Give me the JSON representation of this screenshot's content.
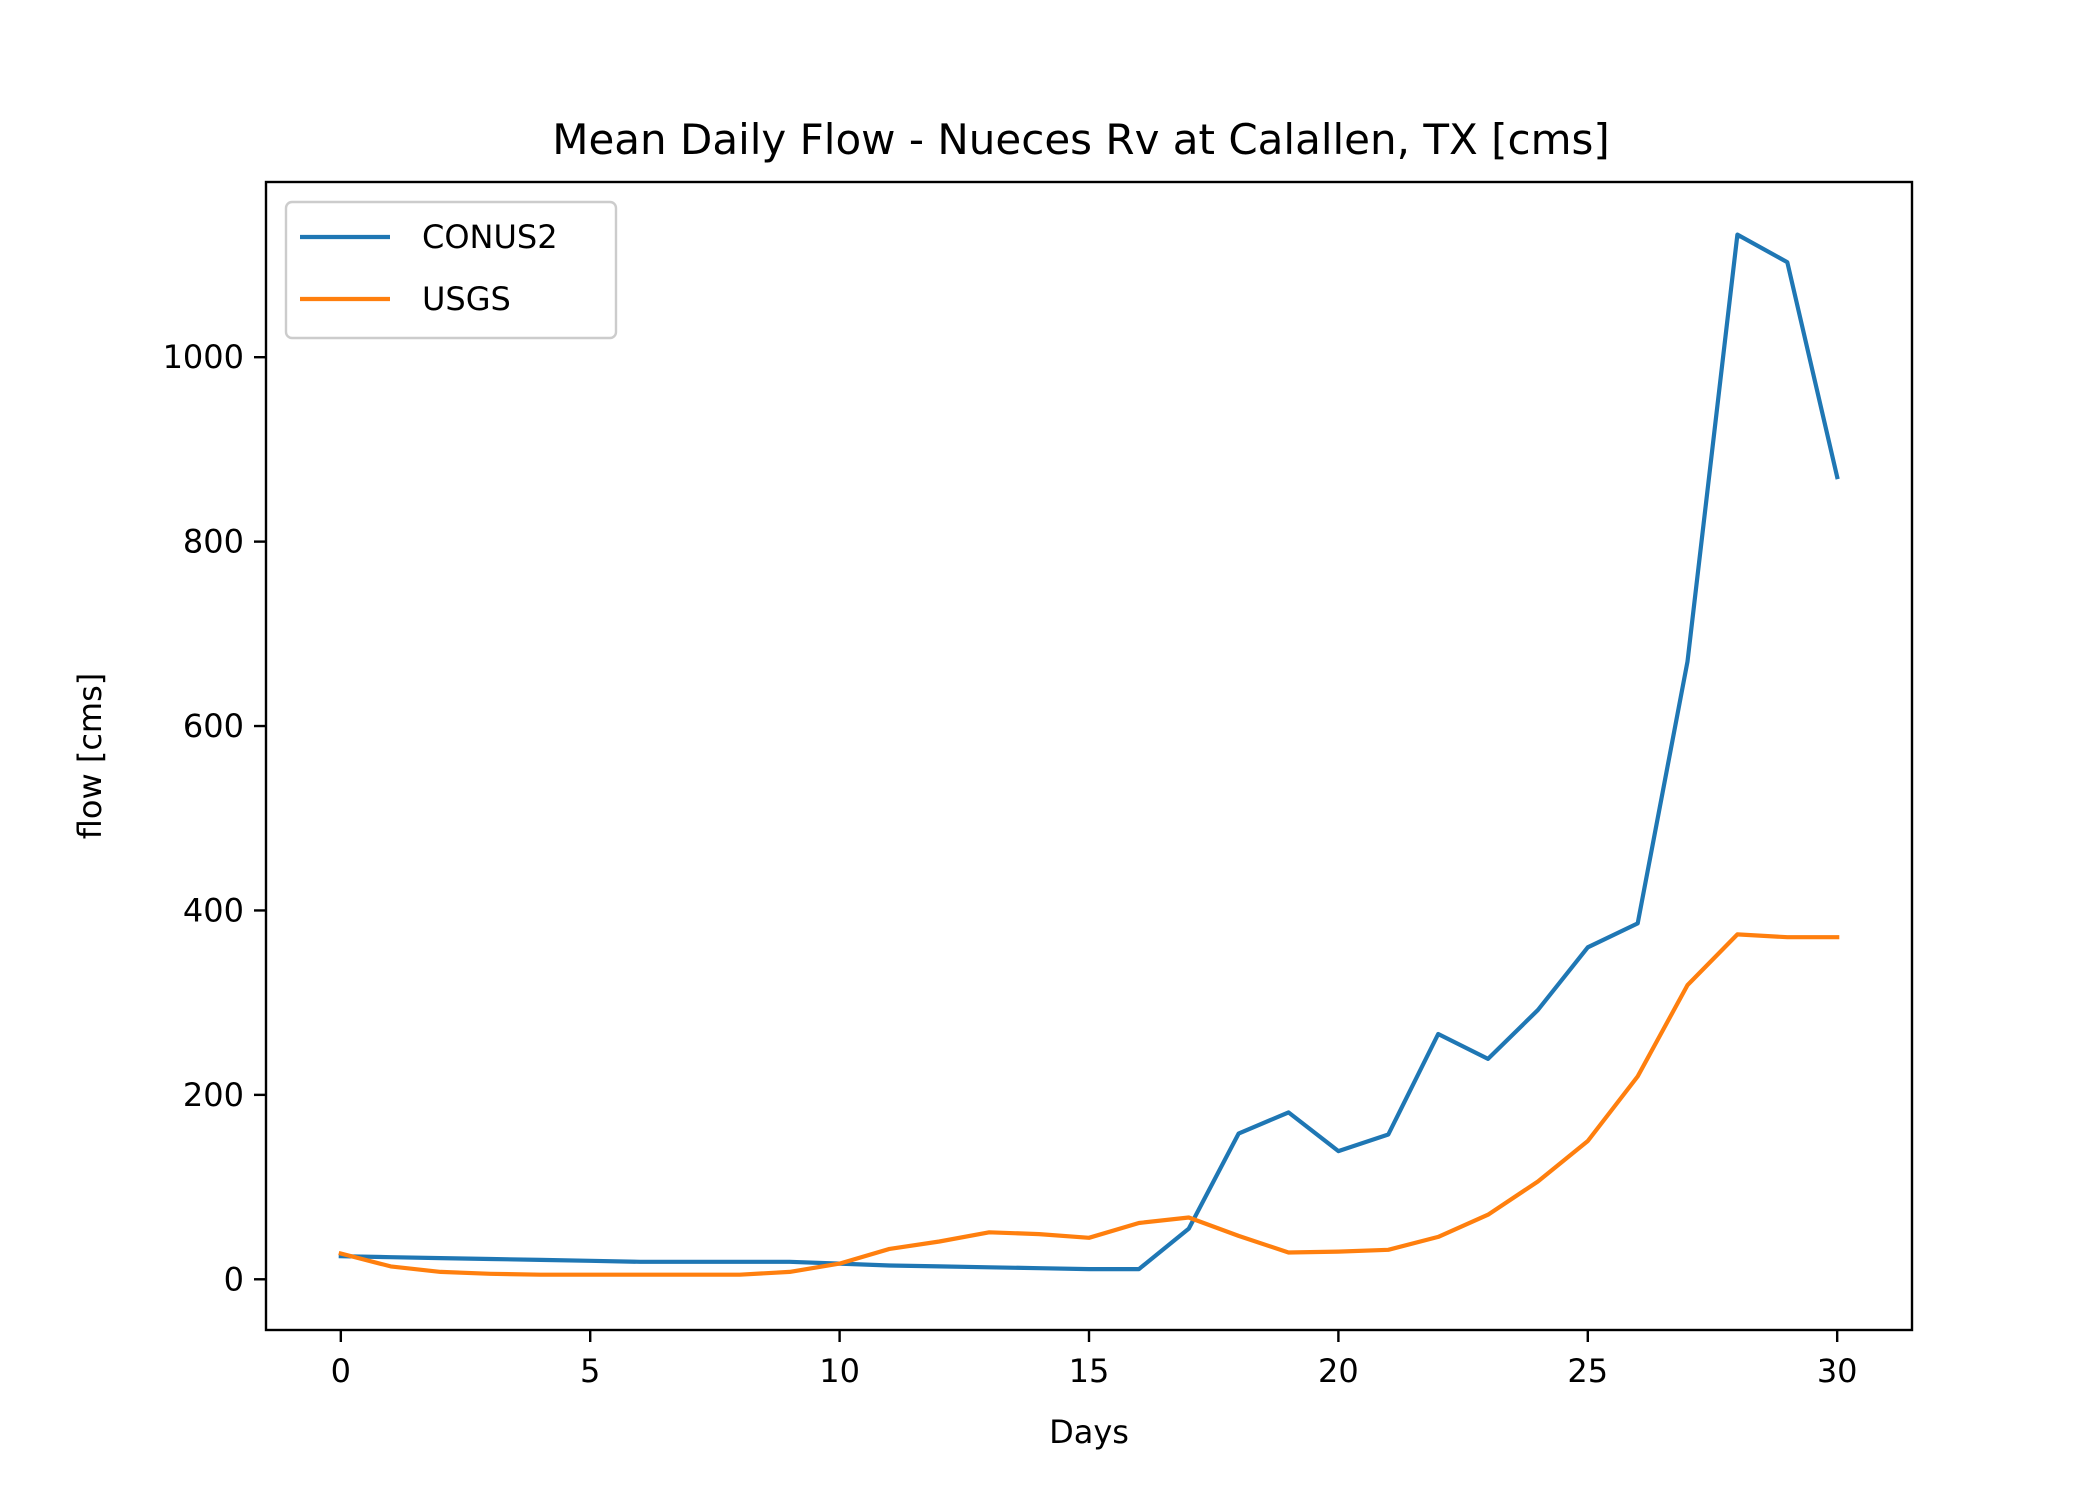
{
  "chart_data": {
    "type": "line",
    "title": "Mean Daily Flow - Nueces Rv at Calallen, TX [cms]",
    "xlabel": "Days",
    "ylabel": "flow [cms]",
    "xlim": [
      -1.5,
      31.5
    ],
    "ylim": [
      -55,
      1190
    ],
    "xticks": [
      0,
      5,
      10,
      15,
      20,
      25,
      30
    ],
    "yticks": [
      0,
      200,
      400,
      600,
      800,
      1000
    ],
    "grid": false,
    "legend": "top-left",
    "x": [
      0,
      1,
      2,
      3,
      4,
      5,
      6,
      7,
      8,
      9,
      10,
      11,
      12,
      13,
      14,
      15,
      16,
      17,
      18,
      19,
      20,
      21,
      22,
      23,
      24,
      25,
      26,
      27,
      28,
      29,
      30
    ],
    "series": [
      {
        "name": "CONUS2",
        "color": "#1f77b4",
        "values": [
          25,
          24,
          23,
          22,
          21,
          20,
          19,
          19,
          19,
          19,
          17,
          15,
          14,
          13,
          12,
          11,
          11,
          55,
          158,
          181,
          139,
          157,
          266,
          239,
          292,
          360,
          386,
          670,
          1133,
          1103,
          870
        ]
      },
      {
        "name": "USGS",
        "color": "#ff7f0e",
        "values": [
          28,
          14,
          8,
          6,
          5,
          5,
          5,
          5,
          5,
          8,
          17,
          33,
          41,
          51,
          49,
          45,
          61,
          67,
          47,
          29,
          30,
          32,
          46,
          70,
          106,
          150,
          220,
          319,
          374,
          371,
          371
        ]
      }
    ]
  }
}
